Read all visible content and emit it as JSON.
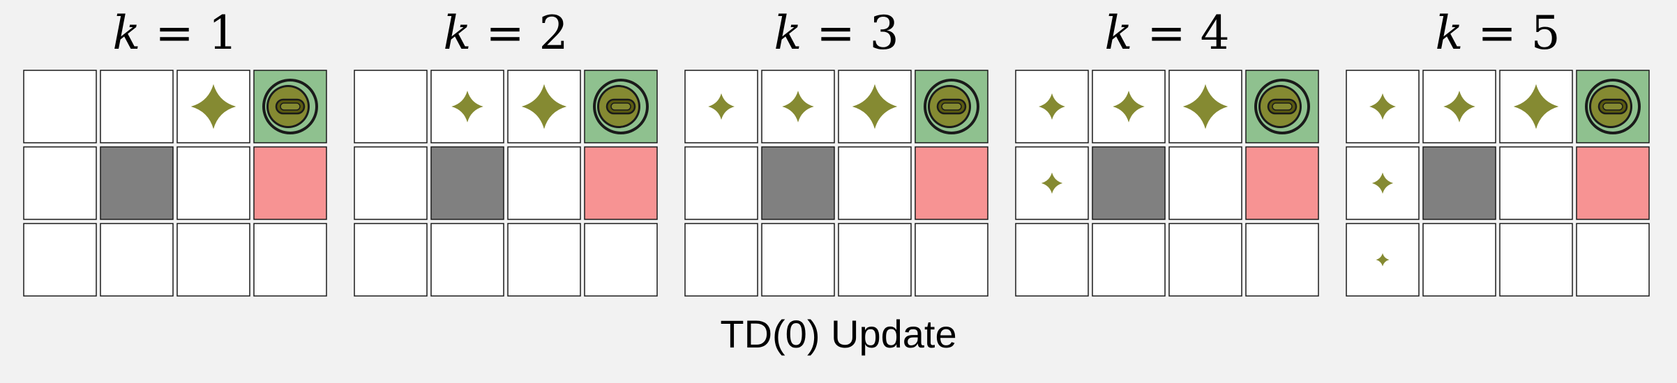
{
  "caption": "TD(0) Update",
  "grid": {
    "rows": 3,
    "cols": 4
  },
  "colors": {
    "background": "#f2f2f2",
    "empty": "#ffffff",
    "wall": "#808080",
    "goal": "#8fc18f",
    "hazard": "#f79393",
    "value_marker": "#858a32",
    "goal_token": "#858a32",
    "goal_token_inner": "#5a5a10"
  },
  "cells": {
    "goal": [
      0,
      3
    ],
    "wall": [
      1,
      1
    ],
    "hazard": [
      1,
      3
    ]
  },
  "panels": [
    {
      "var": "k",
      "eq": " = ",
      "num": "1",
      "values": [
        [
          0,
          0,
          0.85,
          0
        ],
        [
          0,
          0,
          0,
          0
        ],
        [
          0,
          0,
          0,
          0
        ]
      ]
    },
    {
      "var": "k",
      "eq": " = ",
      "num": "2",
      "values": [
        [
          0,
          0.6,
          0.85,
          0
        ],
        [
          0,
          0,
          0,
          0
        ],
        [
          0,
          0,
          0,
          0
        ]
      ]
    },
    {
      "var": "k",
      "eq": " = ",
      "num": "3",
      "values": [
        [
          0.5,
          0.6,
          0.85,
          0
        ],
        [
          0,
          0,
          0,
          0
        ],
        [
          0,
          0,
          0,
          0
        ]
      ]
    },
    {
      "var": "k",
      "eq": " = ",
      "num": "4",
      "values": [
        [
          0.5,
          0.6,
          0.85,
          0
        ],
        [
          0.4,
          0,
          0,
          0
        ],
        [
          0,
          0,
          0,
          0
        ]
      ]
    },
    {
      "var": "k",
      "eq": " = ",
      "num": "5",
      "values": [
        [
          0.5,
          0.6,
          0.85,
          0
        ],
        [
          0.4,
          0,
          0,
          0
        ],
        [
          0.25,
          0,
          0,
          0
        ]
      ]
    }
  ]
}
